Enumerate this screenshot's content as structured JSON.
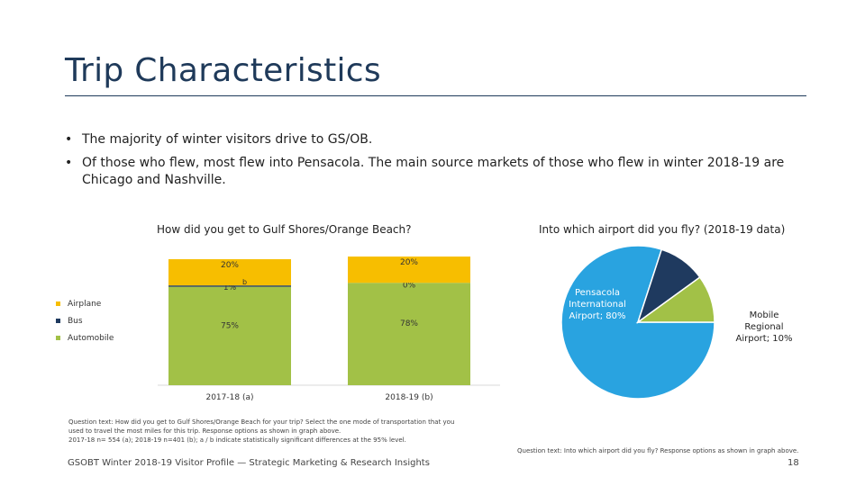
{
  "slide": {
    "title": "Trip Characteristics",
    "bullets": [
      "The majority of winter visitors drive to GS/OB.",
      "Of those who flew, most flew into Pensacola. The main source markets of those who flew in winter 2018-19 are Chicago and Nashville."
    ],
    "footer": "GSOBT Winter 2018-19 Visitor Profile — Strategic Marketing & Research Insights",
    "page_number": "18",
    "bar_note": [
      "Question text: How did you get to Gulf Shores/Orange Beach for your trip? Select the one mode of transportation that you",
      "used to travel the most miles for this trip. Response options as shown in graph above.",
      "2017-18 n= 554 (a); 2018-19 n=401 (b); a / b indicate statistically significant differences at the 95% level."
    ],
    "pie_note": "Question text: Into which airport did you fly? Response options as shown in graph above."
  },
  "chart_data": [
    {
      "type": "bar",
      "stacked": true,
      "title": "How did you get to Gulf Shores/Orange Beach?",
      "categories": [
        "2017-18 (a)",
        "2018-19 (b)"
      ],
      "series": [
        {
          "name": "Automobile",
          "values": [
            75,
            78
          ],
          "labels": [
            "75%",
            "78%"
          ],
          "color": "#a2c147"
        },
        {
          "name": "Bus",
          "values": [
            1,
            0
          ],
          "labels": [
            "1%",
            "0%"
          ],
          "color": "#1f3a5f"
        },
        {
          "name": "Airplane",
          "values": [
            20,
            20
          ],
          "labels": [
            "20%",
            "20%"
          ],
          "color": "#f7be00"
        }
      ],
      "significance_marks": [
        "b",
        ""
      ],
      "legend_position": "left",
      "grid": false
    },
    {
      "type": "pie",
      "title": "Into which airport did you fly? (2018-19 data)",
      "slices": [
        {
          "label": "Pensacola International Airport; 80%",
          "value": 80,
          "color": "#29a3e0"
        },
        {
          "label": "Mobile Regional Airport; 10%",
          "value": 10,
          "color": "#1f3a5f"
        },
        {
          "label": "",
          "value": 10,
          "color": "#a2c147"
        }
      ]
    }
  ]
}
